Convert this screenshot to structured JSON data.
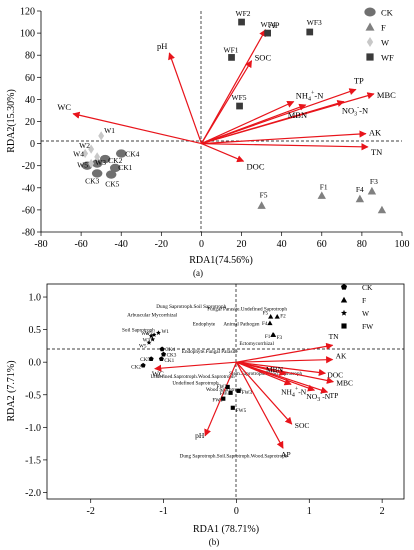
{
  "chart_data": [
    {
      "type": "scatter",
      "panel_label": "(a)",
      "xlabel": "RDA1(74.56%)",
      "ylabel": "RDA2(15.30%)",
      "xlim": [
        -80,
        100
      ],
      "ylim": [
        -80,
        120
      ],
      "xticks": [
        -80,
        -60,
        -40,
        -20,
        0,
        20,
        40,
        60,
        80,
        100
      ],
      "yticks": [
        -80,
        -60,
        -40,
        -20,
        0,
        20,
        40,
        60,
        80,
        100,
        120
      ],
      "legend": [
        {
          "name": "CK",
          "marker": "circle",
          "color": "#707070"
        },
        {
          "name": "F",
          "marker": "triangle",
          "color": "#808080"
        },
        {
          "name": "W",
          "marker": "diamond",
          "color": "#c8c8c8"
        },
        {
          "name": "WF",
          "marker": "square",
          "color": "#3a3a3a"
        }
      ],
      "arrows": [
        {
          "label": "pH",
          "x": -16,
          "y": 82
        },
        {
          "label": "WC",
          "x": -64,
          "y": 27
        },
        {
          "label": "AP",
          "x": 32,
          "y": 103
        },
        {
          "label": "SOC",
          "x": 25,
          "y": 75
        },
        {
          "label": "NH4+-N",
          "x": 46,
          "y": 38
        },
        {
          "label": "TP",
          "x": 77,
          "y": 49
        },
        {
          "label": "MBC",
          "x": 86,
          "y": 45
        },
        {
          "label": "NO3--N",
          "x": 71,
          "y": 38
        },
        {
          "label": "MBN",
          "x": 52,
          "y": 35
        },
        {
          "label": "AK",
          "x": 82,
          "y": 9
        },
        {
          "label": "TN",
          "x": 83,
          "y": -3
        },
        {
          "label": "DOC",
          "x": 21,
          "y": -16
        }
      ],
      "arrow_labels": [
        {
          "id": "pH",
          "text": "pH"
        },
        {
          "id": "WC",
          "text": "WC"
        },
        {
          "id": "AP",
          "text": "AP"
        },
        {
          "id": "SOC",
          "text": "SOC"
        },
        {
          "id": "NH",
          "text": "NH",
          "sub": "4",
          "sup": "+",
          "tail": "-N"
        },
        {
          "id": "TP",
          "text": "TP"
        },
        {
          "id": "MBC",
          "text": "MBC"
        },
        {
          "id": "NO",
          "text": "NO",
          "sub": "3",
          "sup": "-",
          "tail": "-N"
        },
        {
          "id": "MBN",
          "text": "MBN"
        },
        {
          "id": "AK",
          "text": "AK"
        },
        {
          "id": "TN",
          "text": "TN"
        },
        {
          "id": "DOC",
          "text": "DOC"
        }
      ],
      "points": [
        {
          "group": "CK",
          "label": "CK1",
          "x": -43,
          "y": -22
        },
        {
          "group": "CK",
          "label": "CK2",
          "x": -48,
          "y": -14
        },
        {
          "group": "CK",
          "label": "CK3",
          "x": -52,
          "y": -27
        },
        {
          "group": "CK",
          "label": "CK4",
          "x": -40,
          "y": -9
        },
        {
          "group": "CK",
          "label": "CK5",
          "x": -45,
          "y": -28
        },
        {
          "group": "CK",
          "label": "",
          "x": -57,
          "y": -20
        },
        {
          "group": "CK",
          "label": "",
          "x": -52,
          "y": -18
        },
        {
          "group": "F",
          "label": "F1",
          "x": 60,
          "y": -47
        },
        {
          "group": "F",
          "label": "F3",
          "x": 85,
          "y": -43
        },
        {
          "group": "F",
          "label": "F4",
          "x": 79,
          "y": -50
        },
        {
          "group": "F",
          "label": "F5",
          "x": 30,
          "y": -56
        },
        {
          "group": "F",
          "label": "",
          "x": 90,
          "y": -60
        },
        {
          "group": "W",
          "label": "W1",
          "x": -50,
          "y": 7
        },
        {
          "group": "W",
          "label": "W2",
          "x": -55,
          "y": -5
        },
        {
          "group": "W",
          "label": "W3",
          "x": -52,
          "y": -12
        },
        {
          "group": "W",
          "label": "W4",
          "x": -58,
          "y": -9
        },
        {
          "group": "W",
          "label": "W5",
          "x": -55,
          "y": -18
        },
        {
          "group": "WF",
          "label": "WF1",
          "x": 15,
          "y": 78
        },
        {
          "group": "WF",
          "label": "WF2",
          "x": 20,
          "y": 110
        },
        {
          "group": "WF",
          "label": "WF3",
          "x": 54,
          "y": 101
        },
        {
          "group": "WF",
          "label": "WF4",
          "x": 33,
          "y": 100
        },
        {
          "group": "WF",
          "label": "WF5",
          "x": 19,
          "y": 34
        }
      ]
    },
    {
      "type": "scatter",
      "panel_label": "(b)",
      "xlabel": "RDA1 (78.71%)",
      "ylabel": "RDA2 (7.71%)",
      "xlim": [
        -2.6,
        2.3
      ],
      "ylim": [
        -2.1,
        1.2
      ],
      "xticks": [
        -2,
        -1,
        0,
        1,
        2
      ],
      "yticks": [
        -2.0,
        -1.5,
        -1.0,
        -0.5,
        0.0,
        0.5,
        1.0
      ],
      "ytick_labels": [
        "-2.0",
        "-1.5",
        "-1.0",
        "-0.5",
        "0.0",
        "0.5",
        "1.0"
      ],
      "legend": [
        {
          "name": "CK",
          "marker": "pentagon",
          "color": "#000000"
        },
        {
          "name": "F",
          "marker": "triangle",
          "color": "#000000"
        },
        {
          "name": "W",
          "marker": "star",
          "color": "#000000"
        },
        {
          "name": "FW",
          "marker": "square",
          "color": "#000000"
        }
      ],
      "arrows": [
        {
          "label": "TN",
          "x": 1.32,
          "y": 0.26
        },
        {
          "label": "AK",
          "x": 1.32,
          "y": 0.04
        },
        {
          "label": "DOC",
          "x": 1.22,
          "y": -0.17
        },
        {
          "label": "MBC",
          "x": 1.33,
          "y": -0.3
        },
        {
          "label": "TP",
          "x": 1.25,
          "y": -0.46
        },
        {
          "label": "NO3--N",
          "x": 1.07,
          "y": -0.43
        },
        {
          "label": "NH4+-N",
          "x": 0.75,
          "y": -0.34
        },
        {
          "label": "MBN",
          "x": 0.68,
          "y": -0.18
        },
        {
          "label": "SOC",
          "x": 0.76,
          "y": -0.95
        },
        {
          "label": "AP",
          "x": 0.64,
          "y": -1.32
        },
        {
          "label": "pH",
          "x": -0.43,
          "y": -1.13
        },
        {
          "label": "WC",
          "x": -1.12,
          "y": -0.1
        }
      ],
      "arrow_labels": [
        {
          "id": "TN",
          "text": "TN"
        },
        {
          "id": "AK",
          "text": "AK"
        },
        {
          "id": "DOC",
          "text": "DOC"
        },
        {
          "id": "MBC",
          "text": "MBC"
        },
        {
          "id": "TP",
          "text": "TP"
        },
        {
          "id": "NO",
          "text": "NO",
          "sub": "3",
          "sup": "-",
          "tail": "-N"
        },
        {
          "id": "NH",
          "text": "NH",
          "sub": "4",
          "sup": "+",
          "tail": "-N"
        },
        {
          "id": "MBN",
          "text": "MBN"
        },
        {
          "id": "SOC",
          "text": "SOC"
        },
        {
          "id": "AP",
          "text": "AP"
        },
        {
          "id": "pH",
          "text": "pH"
        },
        {
          "id": "WC",
          "text": "WC"
        }
      ],
      "points": [
        {
          "group": "CK",
          "label": "CK1",
          "x": -1.03,
          "y": 0.05
        },
        {
          "group": "CK",
          "label": "CK2",
          "x": -1.28,
          "y": -0.05
        },
        {
          "group": "CK",
          "label": "CK3",
          "x": -1.0,
          "y": 0.12
        },
        {
          "group": "CK",
          "label": "CK4",
          "x": -1.02,
          "y": 0.2
        },
        {
          "group": "CK",
          "label": "CK5",
          "x": -1.17,
          "y": 0.05
        },
        {
          "group": "F",
          "label": "F1",
          "x": 0.5,
          "y": 0.42
        },
        {
          "group": "F",
          "label": "F2",
          "x": 0.56,
          "y": 0.7
        },
        {
          "group": "F",
          "label": "F3",
          "x": 0.51,
          "y": 0.42
        },
        {
          "group": "F",
          "label": "F4",
          "x": 0.46,
          "y": 0.6
        },
        {
          "group": "F",
          "label": "F5",
          "x": 0.47,
          "y": 0.7
        },
        {
          "group": "W",
          "label": "W1",
          "x": -1.07,
          "y": 0.45
        },
        {
          "group": "W",
          "label": "W2",
          "x": -1.13,
          "y": 0.42
        },
        {
          "group": "W",
          "label": "W3",
          "x": -1.15,
          "y": 0.35
        },
        {
          "group": "W",
          "label": "W4",
          "x": -1.17,
          "y": 0.4
        },
        {
          "group": "W",
          "label": "W5",
          "x": -1.2,
          "y": 0.3
        },
        {
          "group": "FW",
          "label": "FW1",
          "x": -0.18,
          "y": -0.56
        },
        {
          "group": "FW",
          "label": "FW2",
          "x": -0.12,
          "y": -0.38
        },
        {
          "group": "FW",
          "label": "FW3",
          "x": 0.03,
          "y": -0.44
        },
        {
          "group": "FW",
          "label": "FW4",
          "x": -0.08,
          "y": -0.47
        },
        {
          "group": "FW",
          "label": "FW5",
          "x": -0.05,
          "y": -0.7
        }
      ],
      "annotations": [
        {
          "text": "Dung Saprotroph.Soil Saprotroph",
          "x": -1.1,
          "y": 0.83
        },
        {
          "text": "Fungal Parasite.Undefined Saprotroph",
          "x": -0.4,
          "y": 0.79
        },
        {
          "text": "Arbuscular Mycorrhizal",
          "x": -1.5,
          "y": 0.7
        },
        {
          "text": "Animal Pathogen",
          "x": -0.18,
          "y": 0.56
        },
        {
          "text": "Endophyte",
          "x": -0.6,
          "y": 0.56
        },
        {
          "text": "Soil Saprotroph",
          "x": -1.57,
          "y": 0.47
        },
        {
          "text": "Ectomycorrhizal",
          "x": 0.04,
          "y": 0.26
        },
        {
          "text": "Endophyte.Fungal Parasite",
          "x": -0.75,
          "y": 0.14
        },
        {
          "text": "Undefined.Saprotroph.Wood.Saprotroph",
          "x": -1.18,
          "y": -0.24
        },
        {
          "text": "Undefined Saprotroph",
          "x": -0.88,
          "y": -0.34
        },
        {
          "text": "Stem.Saprotroph.Wood.Saprotroph",
          "x": -0.1,
          "y": -0.2
        },
        {
          "text": "Wood Saprotroph",
          "x": -0.42,
          "y": -0.44
        },
        {
          "text": "Dung Saprotroph.Soil.Saprotroph.Wood.Saprotroph",
          "x": -0.78,
          "y": -1.46
        }
      ]
    }
  ]
}
